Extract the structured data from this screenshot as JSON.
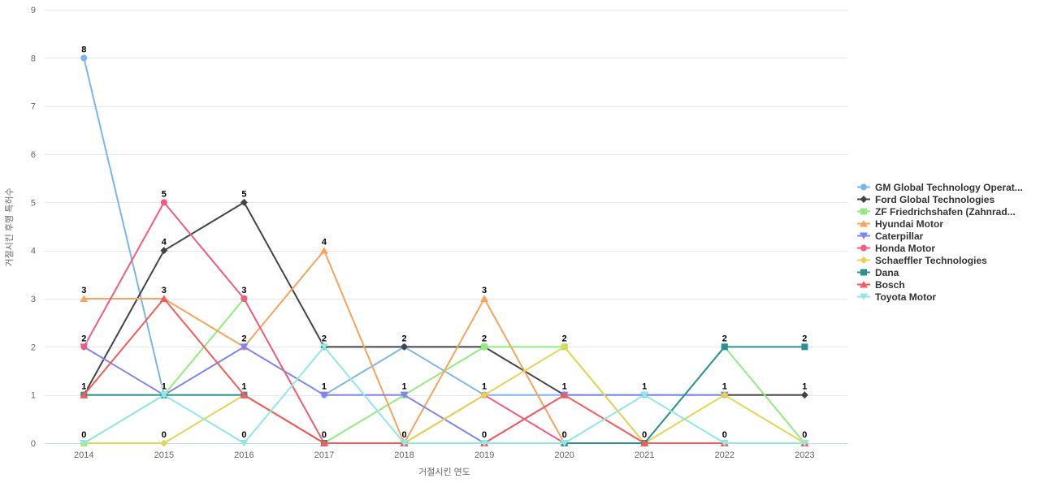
{
  "chart_data": {
    "type": "line",
    "x": [
      "2014",
      "2015",
      "2016",
      "2017",
      "2018",
      "2019",
      "2020",
      "2021",
      "2022",
      "2023"
    ],
    "xlabel": "거절시킨 연도",
    "ylabel": "거절시킨 후행 특허수",
    "ylim": [
      0,
      9
    ],
    "yticks": [
      0,
      1,
      2,
      3,
      4,
      5,
      6,
      7,
      8,
      9
    ],
    "grid": true,
    "legend_position": "right",
    "series": [
      {
        "name": "GM Global Technology Operat...",
        "color": "#7cb5ec",
        "marker": "circle",
        "values": [
          8,
          1,
          null,
          1,
          2,
          1,
          1,
          1,
          1,
          null
        ]
      },
      {
        "name": "Ford Global Technologies",
        "color": "#434348",
        "marker": "diamond",
        "values": [
          1,
          4,
          5,
          2,
          2,
          2,
          1,
          null,
          1,
          1
        ]
      },
      {
        "name": "ZF Friedrichshafen (Zahnrad...",
        "color": "#90ed7d",
        "marker": "square",
        "values": [
          0,
          1,
          3,
          0,
          1,
          2,
          2,
          0,
          2,
          0
        ]
      },
      {
        "name": "Hyundai Motor",
        "color": "#f7a35c",
        "marker": "triangle",
        "values": [
          3,
          3,
          2,
          4,
          0,
          3,
          0,
          0,
          0,
          0
        ]
      },
      {
        "name": "Caterpillar",
        "color": "#8085e9",
        "marker": "triangle-down",
        "values": [
          2,
          1,
          2,
          1,
          1,
          0,
          1,
          1,
          1,
          null
        ]
      },
      {
        "name": "Honda Motor",
        "color": "#f15c80",
        "marker": "circle",
        "values": [
          2,
          5,
          3,
          0,
          0,
          1,
          0,
          0,
          0,
          0
        ]
      },
      {
        "name": "Schaeffler Technologies",
        "color": "#e4d354",
        "marker": "diamond",
        "values": [
          0,
          0,
          1,
          0,
          0,
          1,
          2,
          0,
          1,
          0
        ]
      },
      {
        "name": "Dana",
        "color": "#2b908f",
        "marker": "square",
        "values": [
          1,
          1,
          1,
          0,
          0,
          0,
          0,
          0,
          2,
          2
        ]
      },
      {
        "name": "Bosch",
        "color": "#f45b5b",
        "marker": "triangle",
        "values": [
          1,
          3,
          1,
          0,
          0,
          0,
          1,
          0,
          0,
          0
        ]
      },
      {
        "name": "Toyota Motor",
        "color": "#91e8e1",
        "marker": "triangle-down",
        "values": [
          0,
          1,
          0,
          2,
          0,
          0,
          0,
          1,
          0,
          0
        ]
      }
    ],
    "axis_colors": {
      "gridline": "#e6e6e6",
      "axis_line": "#ccd6eb",
      "tick_text": "#666666"
    }
  }
}
